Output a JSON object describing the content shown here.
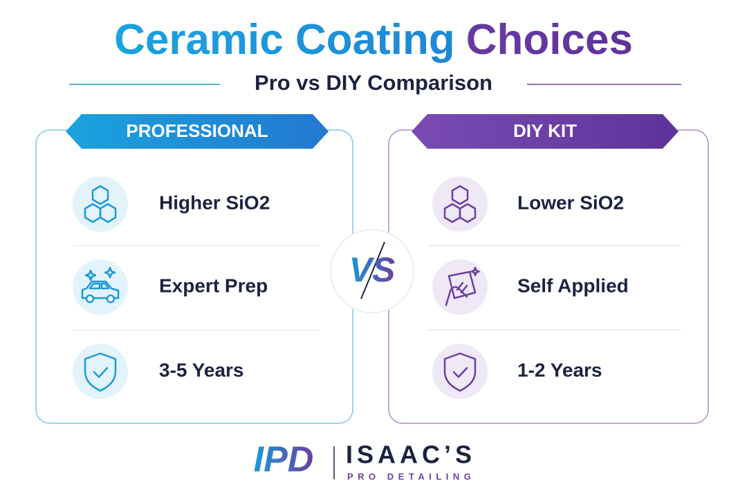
{
  "header": {
    "title_parts": [
      "Ceramic Coating",
      "Choices"
    ],
    "subtitle": "Pro vs DIY Comparison"
  },
  "panels": [
    {
      "label": "PROFESSIONAL",
      "items": [
        "Higher SiO2",
        "Expert Prep",
        "3-5 Years"
      ]
    },
    {
      "label": "DIY KIT",
      "items": [
        "Lower SiO2",
        "Self Applied",
        "1-2 Years"
      ]
    }
  ],
  "versus": "VS",
  "brand": {
    "mark": "IPD",
    "name": "ISAAC’S",
    "tagline": "PRO DETAILING"
  }
}
